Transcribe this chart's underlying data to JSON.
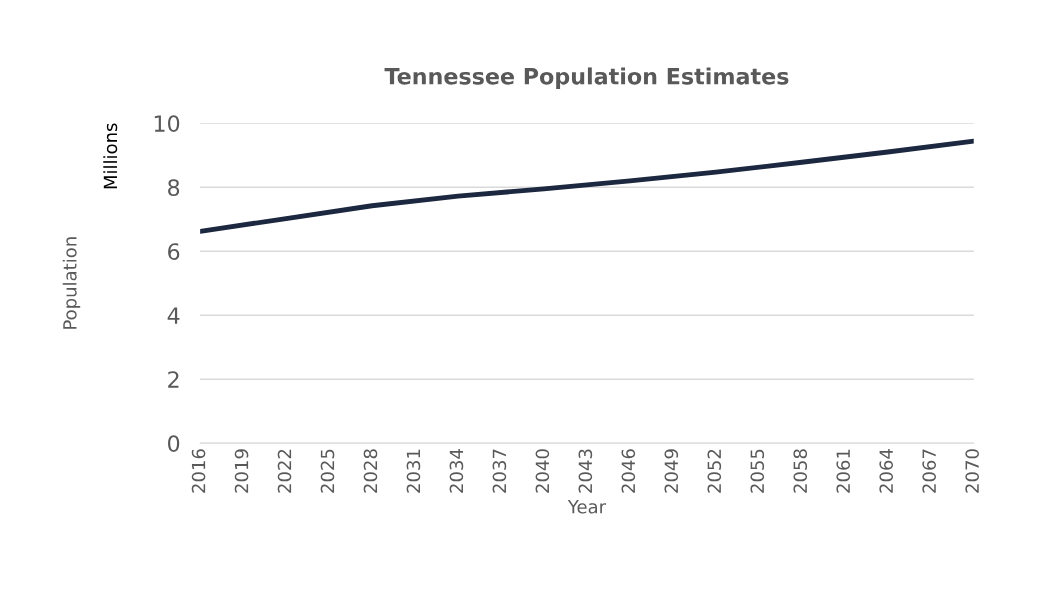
{
  "chart_data": {
    "type": "line",
    "title": "Tennessee Population Estimates",
    "xlabel": "Year",
    "ylabel": "Population",
    "annotations": [
      "Millions"
    ],
    "x": [
      2016,
      2022,
      2028,
      2034,
      2040,
      2046,
      2052,
      2058,
      2064,
      2070
    ],
    "series": [
      {
        "color": "#1c2740",
        "values": [
          6.62,
          7.02,
          7.42,
          7.72,
          7.95,
          8.2,
          8.47,
          8.78,
          9.1,
          9.44
        ]
      }
    ],
    "xlim": [
      2016,
      2070
    ],
    "xticks": [
      2016,
      2019,
      2022,
      2025,
      2028,
      2031,
      2034,
      2037,
      2040,
      2043,
      2046,
      2049,
      2052,
      2055,
      2058,
      2061,
      2064,
      2067,
      2070
    ],
    "ylim": [
      0,
      10
    ],
    "yticks": [
      0,
      2,
      4,
      6,
      8,
      10
    ],
    "grid": "y",
    "legend": false,
    "marker": "none",
    "line_style": "solid"
  }
}
